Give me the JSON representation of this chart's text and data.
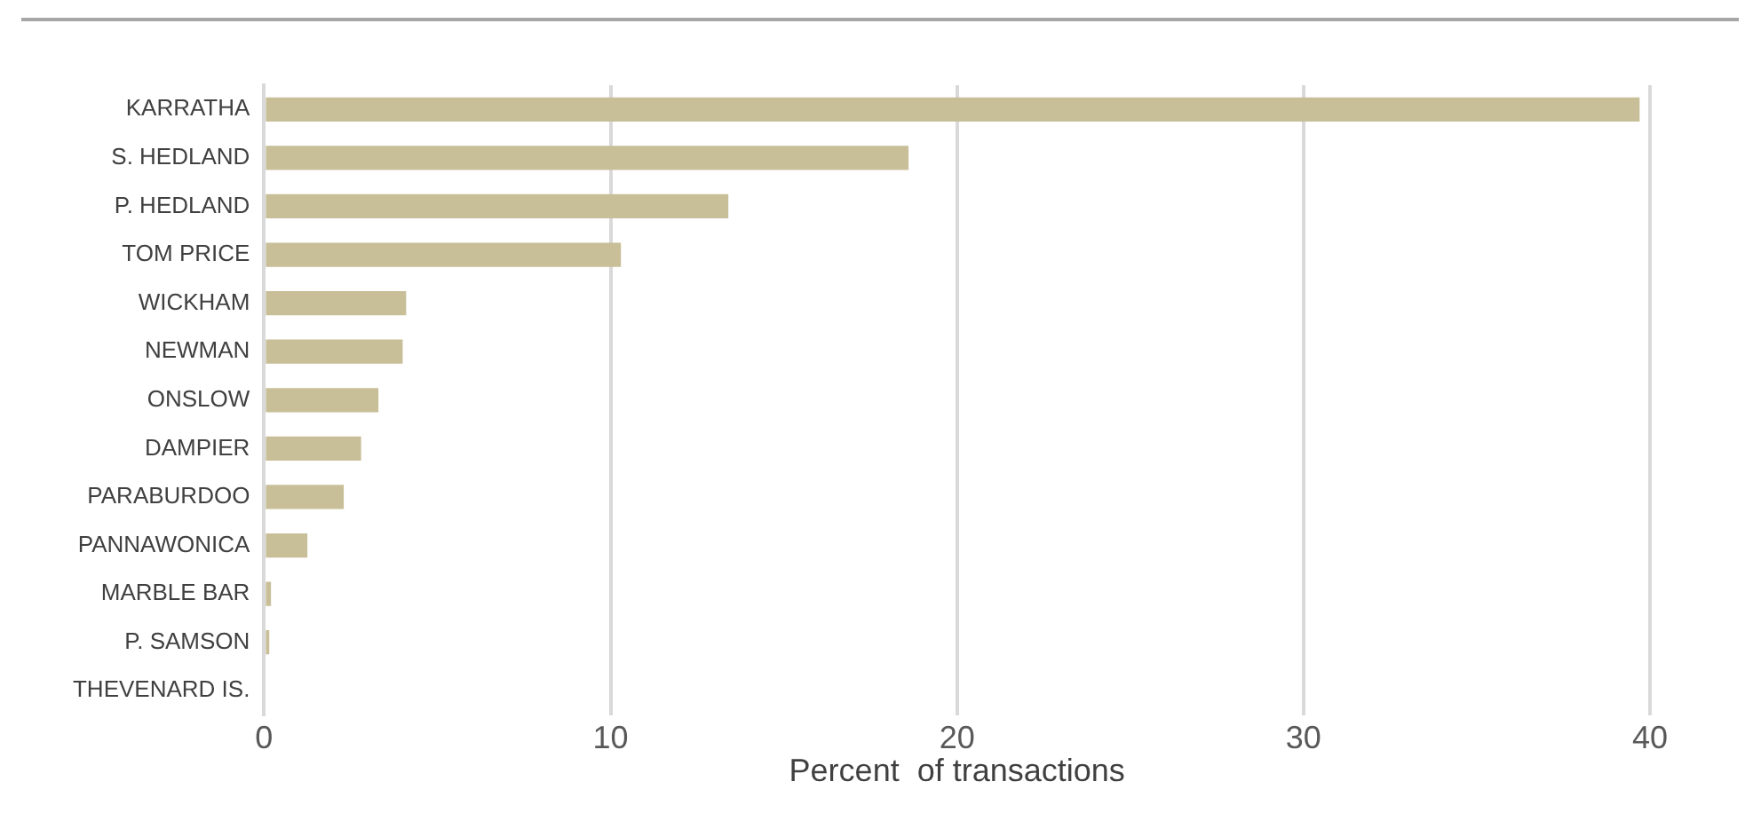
{
  "chart_data": {
    "type": "bar",
    "orientation": "horizontal",
    "xlabel": "Percent  of transactions",
    "categories": [
      "KARRATHA",
      "S. HEDLAND",
      "P. HEDLAND",
      "TOM PRICE",
      "WICKHAM",
      "NEWMAN",
      "ONSLOW",
      "DAMPIER",
      "PARABURDOO",
      "PANNAWONICA",
      "MARBLE BAR",
      "P. SAMSON",
      "THEVENARD IS."
    ],
    "values": [
      39.7,
      18.6,
      13.4,
      10.3,
      4.1,
      4.0,
      3.3,
      2.8,
      2.3,
      1.25,
      0.2,
      0.15,
      0
    ],
    "color": "#c8bf98",
    "xlim": [
      0,
      40
    ],
    "xticks": [
      0,
      10,
      20,
      30,
      40
    ],
    "grid": "x",
    "legend": false
  }
}
